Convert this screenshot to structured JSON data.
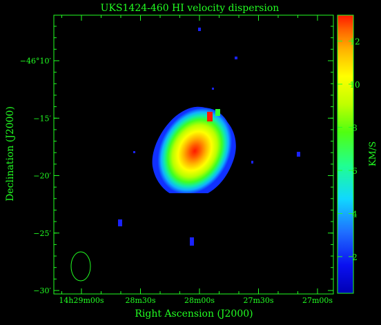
{
  "chart_data": {
    "type": "heatmap",
    "title": "UKS1424-460   HI velocity dispersion",
    "xlabel": "Right Ascension (J2000)",
    "ylabel": "Declination (J2000)",
    "colorbar": {
      "label": "KM/S",
      "range": [
        0.3,
        13.2
      ],
      "ticks": [
        "2",
        "4",
        "6",
        "8",
        "10",
        "12"
      ],
      "tick_values": [
        2,
        4,
        6,
        8,
        10,
        12
      ],
      "colormap": "rainbow (blue → cyan → green → yellow → orange → red)"
    },
    "x_ticks": [
      {
        "value_s": 0,
        "label": "14h29m00s"
      },
      {
        "value_s": 30,
        "label": "28m30s"
      },
      {
        "value_s": 60,
        "label": "28m00s"
      },
      {
        "value_s": 90,
        "label": "27m30s"
      },
      {
        "value_s": 120,
        "label": "27m00s"
      }
    ],
    "y_ticks": [
      {
        "value_min": 10,
        "label": "−46°10′"
      },
      {
        "value_min": 15,
        "label": "−15′"
      },
      {
        "value_min": 20,
        "label": "−20′"
      },
      {
        "value_min": 25,
        "label": "−25′"
      },
      {
        "value_min": 30,
        "label": "−30′"
      }
    ],
    "grid": false,
    "beam": "ellipse, lower-left corner",
    "source": {
      "center_dispersion_kms": 13,
      "edge_dispersion_kms": 2
    }
  },
  "colors": {
    "axes": "#22ff22",
    "background": "#000000"
  }
}
